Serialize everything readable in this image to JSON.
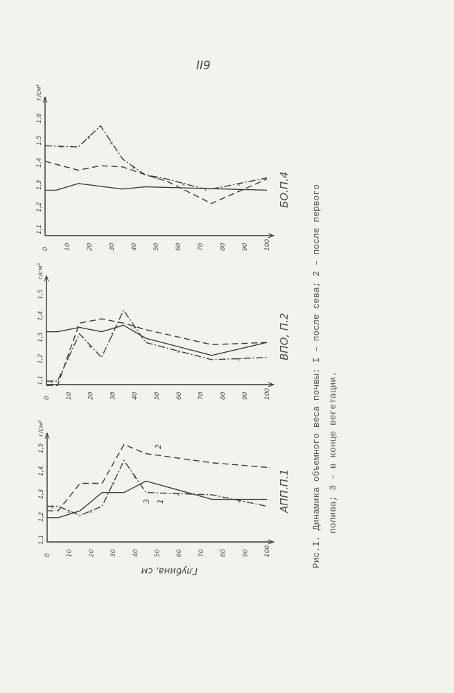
{
  "page_number": "II9",
  "caption": {
    "line1": "Рис.I. Динамика объемного веса почвы: I – после сева; 2 – после первого",
    "line2": "полива; 3 – в конце вегетации."
  },
  "x_axis_label": "Глубина, см",
  "chart_data": [
    {
      "type": "line",
      "title": "БО.П.4",
      "ylabel": "г/см³",
      "xlabel": "",
      "x_ticks": [
        "0",
        "10",
        "20",
        "30",
        "40",
        "50",
        "60",
        "70",
        "80",
        "90",
        "100"
      ],
      "y_ticks": [
        "1.1",
        "1.2",
        "1.3",
        "1.4",
        "1.5",
        "1.6"
      ],
      "xlim": [
        0,
        100
      ],
      "ylim": [
        1.1,
        1.6
      ],
      "series": [
        {
          "name": "1",
          "style": "solid",
          "x": [
            0,
            5,
            15,
            35,
            45,
            100
          ],
          "y": [
            1.28,
            1.28,
            1.31,
            1.285,
            1.295,
            1.28
          ]
        },
        {
          "name": "2",
          "style": "dashed",
          "x": [
            0,
            15,
            25,
            35,
            45,
            55,
            75,
            100
          ],
          "y": [
            1.41,
            1.37,
            1.39,
            1.385,
            1.35,
            1.32,
            1.22,
            1.33
          ]
        },
        {
          "name": "3",
          "style": "dash-dot-x",
          "x": [
            0,
            15,
            25,
            35,
            45,
            55,
            70,
            75,
            100
          ],
          "y": [
            1.48,
            1.475,
            1.57,
            1.42,
            1.35,
            1.33,
            1.29,
            1.285,
            1.335
          ]
        }
      ]
    },
    {
      "type": "line",
      "title": "ВПО, П.2",
      "ylabel": "г/см³",
      "xlabel": "",
      "x_ticks": [
        "0",
        "10",
        "20",
        "30",
        "40",
        "50",
        "60",
        "70",
        "80",
        "90",
        "100"
      ],
      "y_ticks": [
        "1.1",
        "1.2",
        "1.3",
        "1.4",
        "1.5"
      ],
      "xlim": [
        0,
        100
      ],
      "ylim": [
        1.1,
        1.5
      ],
      "series": [
        {
          "name": "1",
          "style": "solid",
          "x": [
            0,
            5,
            15,
            25,
            35,
            45,
            75,
            100
          ],
          "y": [
            1.33,
            1.33,
            1.35,
            1.33,
            1.36,
            1.3,
            1.22,
            1.28
          ]
        },
        {
          "name": "2",
          "style": "dashed",
          "x": [
            0,
            5,
            15,
            25,
            35,
            45,
            75,
            100
          ],
          "y": [
            1.08,
            1.08,
            1.37,
            1.39,
            1.37,
            1.34,
            1.27,
            1.28
          ]
        },
        {
          "name": "3",
          "style": "dash-dot-x",
          "x": [
            0,
            5,
            15,
            25,
            35,
            45,
            75,
            100
          ],
          "y": [
            1.1,
            1.1,
            1.32,
            1.21,
            1.43,
            1.28,
            1.2,
            1.21
          ]
        }
      ]
    },
    {
      "type": "line",
      "title": "АПП.П.1",
      "ylabel": "г/см³",
      "xlabel": "Глубина, см",
      "x_ticks": [
        "0",
        "10",
        "20",
        "30",
        "40",
        "50",
        "60",
        "70",
        "80",
        "90",
        "100"
      ],
      "y_ticks": [
        "1.1",
        "1.2",
        "1.3",
        "1.4",
        "1.5"
      ],
      "xlim": [
        0,
        100
      ],
      "ylim": [
        1.1,
        1.5
      ],
      "series": [
        {
          "name": "1",
          "style": "solid",
          "x": [
            0,
            5,
            15,
            25,
            35,
            45,
            75,
            100
          ],
          "y": [
            1.2,
            1.2,
            1.23,
            1.31,
            1.31,
            1.36,
            1.28,
            1.28
          ]
        },
        {
          "name": "2",
          "style": "dashed",
          "x": [
            0,
            5,
            15,
            25,
            35,
            45,
            75,
            100
          ],
          "y": [
            1.23,
            1.23,
            1.35,
            1.35,
            1.52,
            1.48,
            1.44,
            1.42
          ]
        },
        {
          "name": "3",
          "style": "dash-dot-x",
          "x": [
            0,
            5,
            15,
            25,
            35,
            45,
            75,
            100
          ],
          "y": [
            1.25,
            1.25,
            1.21,
            1.25,
            1.45,
            1.31,
            1.3,
            1.25
          ]
        }
      ],
      "curve_labels": [
        "1",
        "2",
        "3"
      ]
    }
  ]
}
